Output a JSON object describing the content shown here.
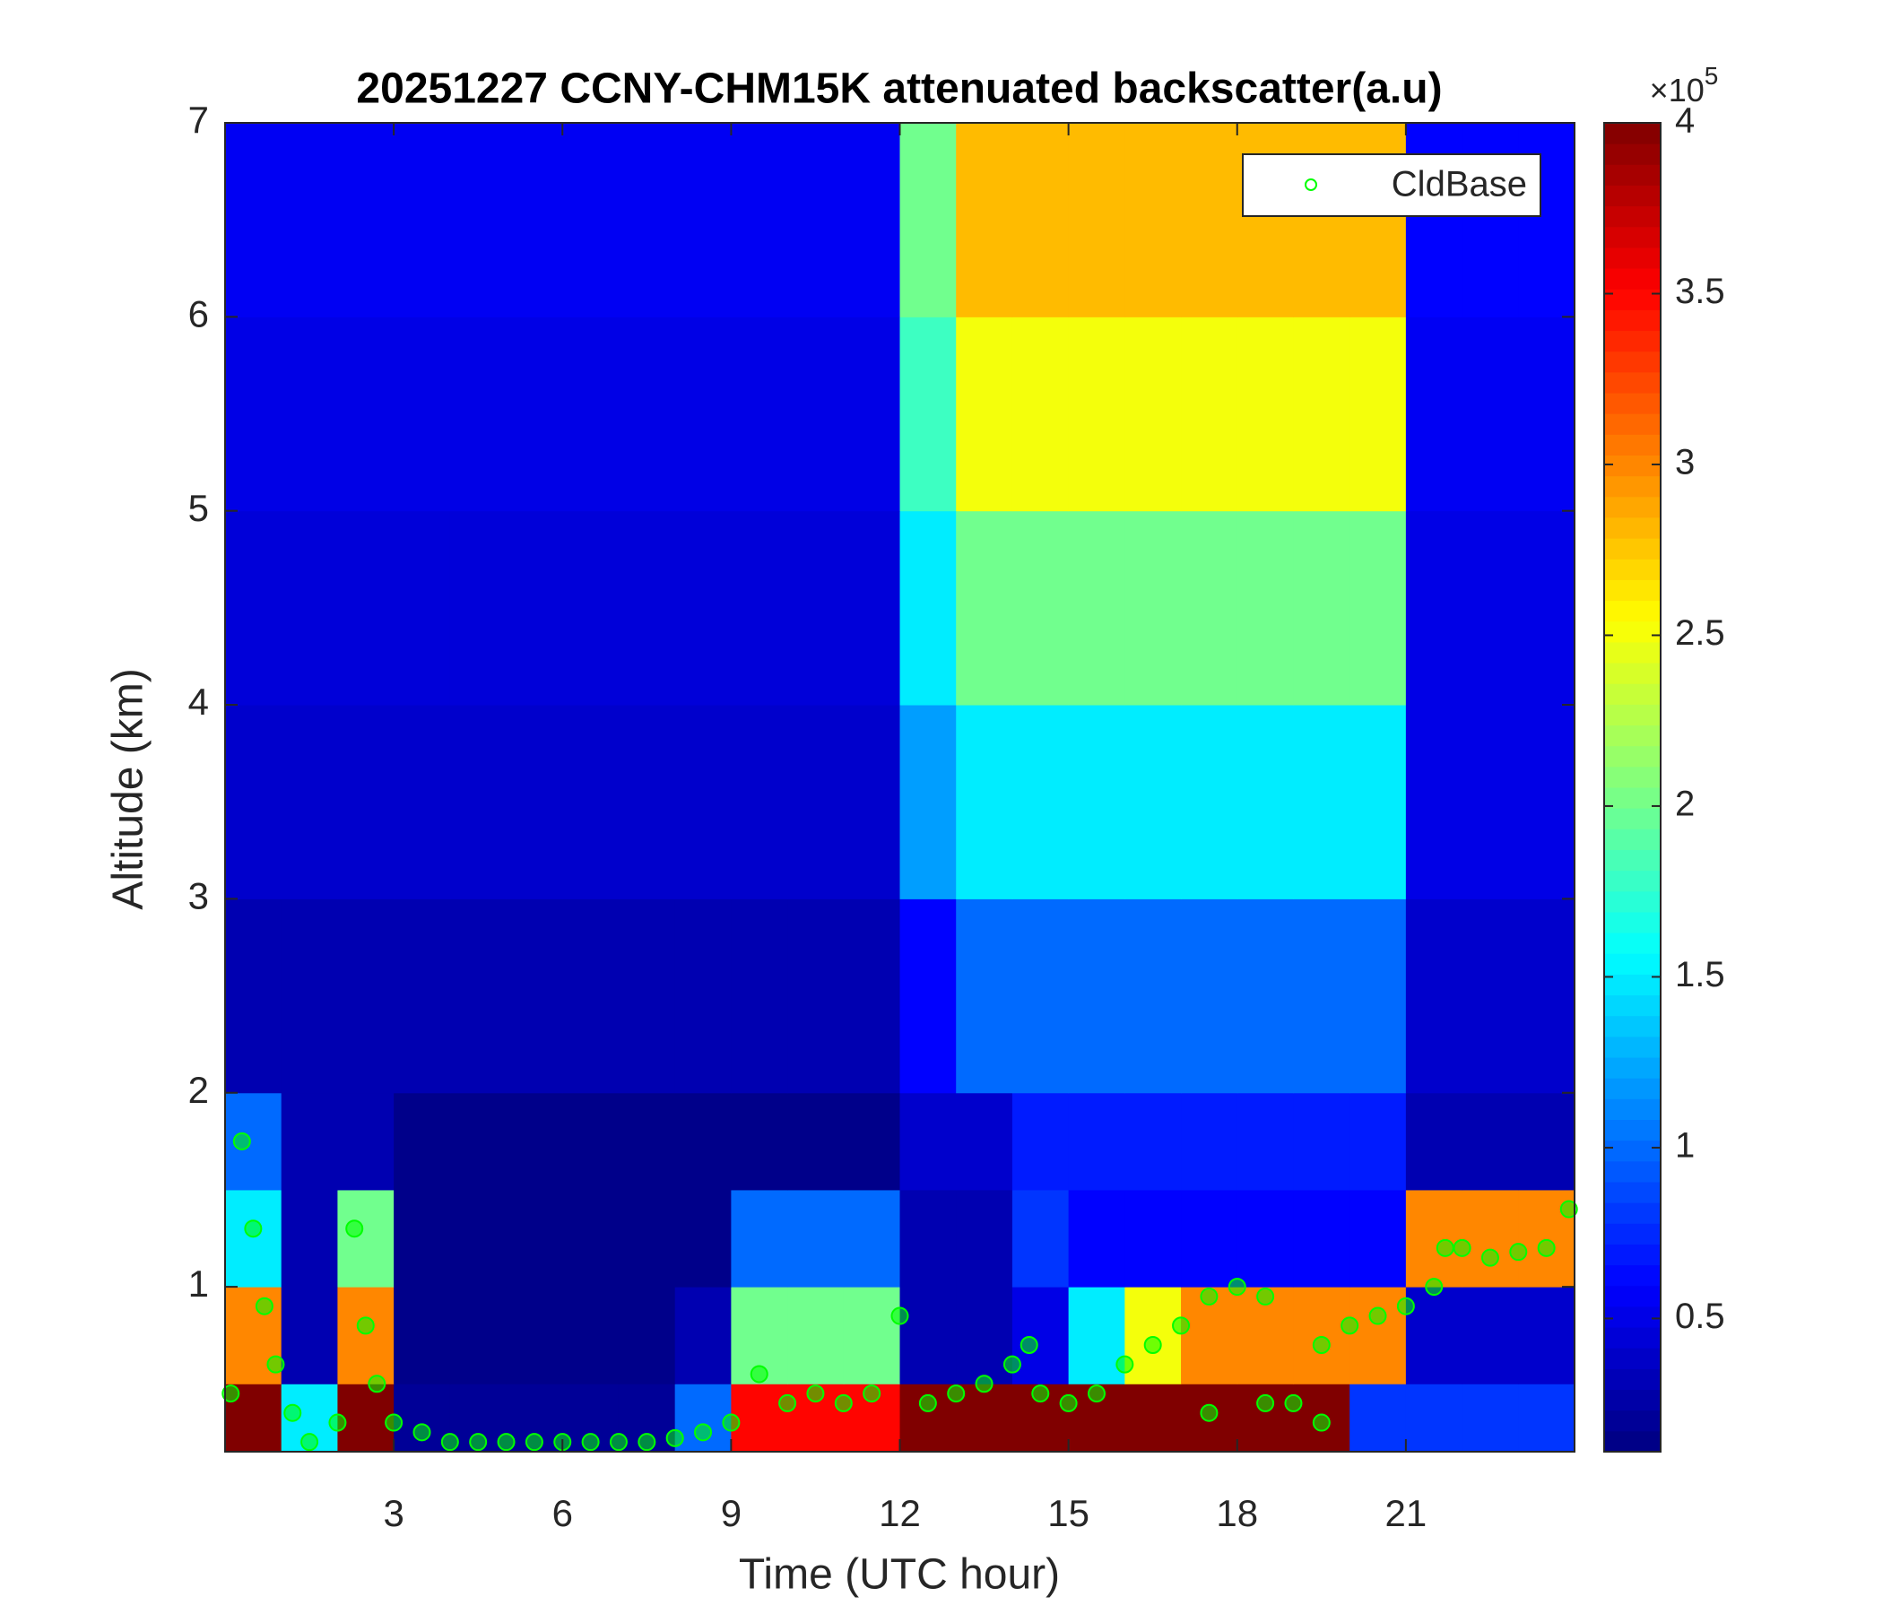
{
  "chart_data": {
    "type": "heatmap",
    "title": "20251227 CCNY-CHM15K attenuated backscatter(a.u)",
    "xlabel": "Time (UTC hour)",
    "ylabel": "Altitude (km)",
    "xlim": [
      0,
      24
    ],
    "ylim": [
      0.15,
      7
    ],
    "xticks": [
      3,
      6,
      9,
      12,
      15,
      18,
      21
    ],
    "yticks": [
      1,
      2,
      3,
      4,
      5,
      6,
      7
    ],
    "colormap": "jet",
    "clim": [
      0.11,
      4
    ],
    "cticks": [
      0.5,
      1,
      1.5,
      2,
      2.5,
      3,
      3.5,
      4
    ],
    "colorbar_multiplier": {
      "base": "×10",
      "exponent": "5"
    },
    "legend_position": "upper right",
    "x_edges": [
      0,
      1,
      2,
      3,
      4,
      5,
      6,
      7,
      8,
      9,
      10,
      11,
      12,
      13,
      14,
      15,
      16,
      17,
      18,
      19,
      20,
      21,
      22,
      23,
      24
    ],
    "y_edges": [
      0.15,
      0.5,
      1,
      1.5,
      2,
      3,
      4,
      5,
      6,
      7
    ],
    "values": [
      [
        4,
        1.5,
        4,
        0.2,
        0.2,
        0.2,
        0.2,
        0.2,
        1,
        3.5,
        3.5,
        3.5,
        4,
        4,
        4,
        4,
        4,
        4,
        4,
        4,
        0.8,
        0.8,
        0.8,
        0.8
      ],
      [
        3,
        0.3,
        3,
        0.15,
        0.15,
        0.15,
        0.15,
        0.15,
        0.3,
        2,
        2,
        2,
        0.3,
        0.3,
        0.5,
        1.5,
        2.5,
        3,
        3,
        3,
        3,
        0.4,
        0.4,
        0.4
      ],
      [
        1.5,
        0.3,
        2,
        0.15,
        0.15,
        0.15,
        0.15,
        0.15,
        0.15,
        1,
        1,
        1,
        0.3,
        0.3,
        0.8,
        0.6,
        0.6,
        0.6,
        0.6,
        0.6,
        0.6,
        3,
        3,
        3
      ],
      [
        1,
        0.3,
        0.3,
        0.15,
        0.15,
        0.15,
        0.15,
        0.15,
        0.15,
        0.15,
        0.15,
        0.15,
        0.4,
        0.4,
        0.7,
        0.7,
        0.7,
        0.7,
        0.7,
        0.7,
        0.7,
        0.3,
        0.3,
        0.3
      ],
      [
        0.3,
        0.3,
        0.3,
        0.3,
        0.3,
        0.3,
        0.3,
        0.3,
        0.3,
        0.3,
        0.3,
        0.3,
        0.6,
        1,
        1,
        1,
        1,
        1,
        1,
        1,
        1,
        0.4,
        0.4,
        0.4
      ],
      [
        0.4,
        0.4,
        0.4,
        0.4,
        0.4,
        0.4,
        0.4,
        0.4,
        0.4,
        0.4,
        0.4,
        0.4,
        1.2,
        1.5,
        1.5,
        1.5,
        1.5,
        1.5,
        1.5,
        1.5,
        1.5,
        0.5,
        0.5,
        0.5
      ],
      [
        0.45,
        0.45,
        0.45,
        0.45,
        0.45,
        0.45,
        0.45,
        0.45,
        0.45,
        0.45,
        0.45,
        0.45,
        1.5,
        2,
        2,
        2,
        2,
        2,
        2,
        2,
        2,
        0.5,
        0.5,
        0.5
      ],
      [
        0.5,
        0.5,
        0.5,
        0.5,
        0.5,
        0.5,
        0.5,
        0.5,
        0.5,
        0.5,
        0.5,
        0.5,
        1.8,
        2.5,
        2.5,
        2.5,
        2.5,
        2.5,
        2.5,
        2.5,
        2.5,
        0.55,
        0.55,
        0.55
      ],
      [
        0.55,
        0.55,
        0.55,
        0.55,
        0.55,
        0.55,
        0.55,
        0.55,
        0.55,
        0.55,
        0.55,
        0.55,
        2,
        2.8,
        2.8,
        2.8,
        2.8,
        2.8,
        2.8,
        2.8,
        2.8,
        0.6,
        0.6,
        0.6
      ]
    ],
    "scatter_series": {
      "name": "CldBase",
      "color": "#00ff00",
      "x": [
        0.1,
        0.3,
        0.5,
        0.7,
        0.9,
        1.2,
        1.5,
        2.0,
        2.3,
        2.5,
        2.7,
        3.0,
        3.5,
        4,
        4.5,
        5,
        5.5,
        6,
        6.5,
        7,
        7.5,
        8,
        8.5,
        9,
        9.5,
        10,
        10.5,
        11,
        11.5,
        12,
        12.5,
        13,
        13.5,
        14,
        14.3,
        14.5,
        15,
        15.5,
        16,
        16.5,
        17,
        17.5,
        17.5,
        18,
        18.5,
        18.5,
        19,
        19.5,
        19.5,
        20,
        20.5,
        21,
        21.5,
        21.7,
        22,
        22.5,
        23,
        23.5,
        23.9
      ],
      "y": [
        0.45,
        1.75,
        1.3,
        0.9,
        0.6,
        0.35,
        0.2,
        0.3,
        1.3,
        0.8,
        0.5,
        0.3,
        0.25,
        0.2,
        0.2,
        0.2,
        0.2,
        0.2,
        0.2,
        0.2,
        0.2,
        0.22,
        0.25,
        0.3,
        0.55,
        0.4,
        0.45,
        0.4,
        0.45,
        0.85,
        0.4,
        0.45,
        0.5,
        0.6,
        0.7,
        0.45,
        0.4,
        0.45,
        0.6,
        0.7,
        0.8,
        0.95,
        0.35,
        1.0,
        0.95,
        0.4,
        0.4,
        0.7,
        0.3,
        0.8,
        0.85,
        0.9,
        1.0,
        1.2,
        1.2,
        1.15,
        1.18,
        1.2,
        1.4
      ]
    }
  }
}
